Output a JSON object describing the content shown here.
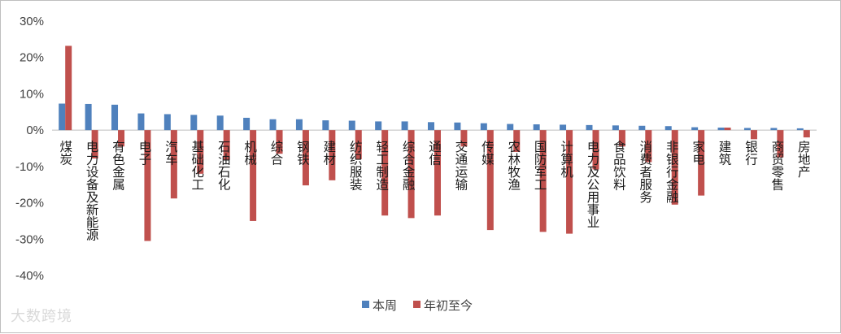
{
  "chart_data": {
    "type": "bar",
    "categories": [
      "煤炭",
      "电力设备及新能源",
      "有色金属",
      "电子",
      "汽车",
      "基础化工",
      "石油石化",
      "机械",
      "综合",
      "钢铁",
      "建材",
      "纺织服装",
      "轻工制造",
      "综合金融",
      "通信",
      "交通运输",
      "传媒",
      "农林牧渔",
      "国防军工",
      "计算机",
      "电力及公用事业",
      "食品饮料",
      "消费者服务",
      "非银行金融",
      "家电",
      "建筑",
      "银行",
      "商贸零售",
      "房地产"
    ],
    "series": [
      {
        "name": "本周",
        "color": "#4f81bd",
        "values": [
          7.3,
          7.2,
          7.0,
          4.6,
          4.4,
          4.2,
          4.0,
          3.4,
          3.0,
          3.0,
          2.7,
          2.6,
          2.4,
          2.4,
          2.2,
          2.1,
          1.9,
          1.7,
          1.6,
          1.5,
          1.4,
          1.3,
          1.2,
          1.1,
          0.8,
          0.7,
          0.6,
          0.6,
          0.5
        ]
      },
      {
        "name": "年初至今",
        "color": "#c0504d",
        "values": [
          23.2,
          -7.8,
          -4.5,
          -30.5,
          -18.8,
          -12.0,
          -8.2,
          -25.0,
          -6.5,
          -15.2,
          -13.8,
          -8.0,
          -23.5,
          -24.2,
          -23.5,
          -4.5,
          -27.5,
          -6.0,
          -28.0,
          -28.5,
          -10.8,
          -4.5,
          -8.8,
          -20.5,
          -18.0,
          0.7,
          -2.5,
          -7.5,
          -2.0
        ]
      }
    ],
    "ylim": [
      -40,
      30
    ],
    "yticks": [
      30,
      20,
      10,
      0,
      -10,
      -20,
      -30,
      -40
    ],
    "ytick_labels": [
      "30%",
      "20%",
      "10%",
      "0%",
      "-10%",
      "-20%",
      "-30%",
      "-40%"
    ],
    "legend_position": "bottom-center",
    "grid": false
  },
  "watermark": "大数跨境"
}
